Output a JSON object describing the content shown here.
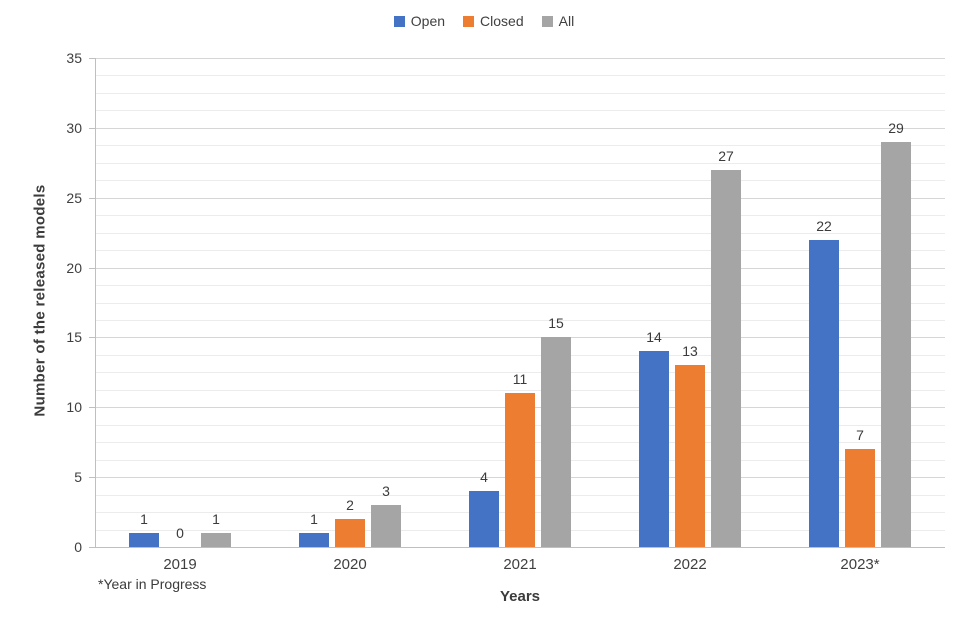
{
  "chart_data": {
    "type": "bar",
    "title": "",
    "categories": [
      "2019",
      "2020",
      "2021",
      "2022",
      "2023*"
    ],
    "series": [
      {
        "name": "Open",
        "color": "#4472C4",
        "values": [
          1,
          1,
          4,
          14,
          22
        ]
      },
      {
        "name": "Closed",
        "color": "#ED7D31",
        "values": [
          0,
          2,
          11,
          13,
          7
        ]
      },
      {
        "name": "All",
        "color": "#A5A5A5",
        "values": [
          1,
          3,
          15,
          27,
          29
        ]
      }
    ],
    "xlabel": "Years",
    "ylabel": "Number of the released models",
    "footnote": "*Year in Progress",
    "ylim": [
      0,
      35
    ],
    "ytick_step": 5,
    "grid": "on",
    "legend_position": "top"
  }
}
